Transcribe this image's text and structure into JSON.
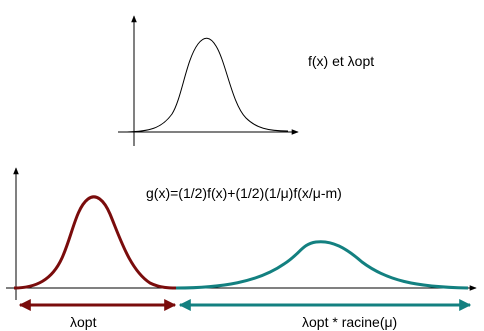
{
  "top_plot": {
    "label": "f(x) et λopt",
    "curve_color": "#000000"
  },
  "bottom_plot": {
    "formula": "g(x)=(1/2)f(x)+(1/2)(1/μ)f(x/μ-m)",
    "left_curve_color": "#7a0c0c",
    "right_curve_color": "#138080",
    "left_arrow_label": "λopt",
    "right_arrow_label": "λopt * racine(μ)"
  }
}
